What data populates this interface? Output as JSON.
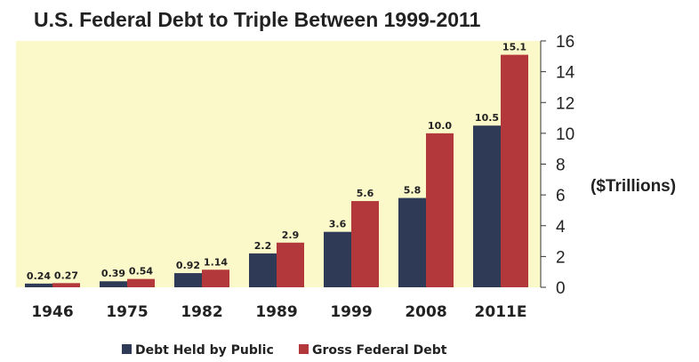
{
  "chart_data": {
    "type": "bar",
    "title": "U.S. Federal Debt to Triple Between 1999-2011",
    "ylabel": "($Trillions)",
    "xlabel": "",
    "categories": [
      "1946",
      "1975",
      "1982",
      "1989",
      "1999",
      "2008",
      "2011E"
    ],
    "series": [
      {
        "name": "Debt Held by Public",
        "color": "#2f3a56",
        "values": [
          0.24,
          0.39,
          0.92,
          2.2,
          3.6,
          5.8,
          10.5
        ],
        "labels": [
          "0.24",
          "0.39",
          "0.92",
          "2.2",
          "3.6",
          "5.8",
          "10.5"
        ]
      },
      {
        "name": "Gross Federal Debt",
        "color": "#b3383b",
        "values": [
          0.27,
          0.54,
          1.14,
          2.9,
          5.6,
          10.0,
          15.1
        ],
        "labels": [
          "0.27",
          "0.54",
          "1.14",
          "2.9",
          "5.6",
          "10.0",
          "15.1"
        ]
      }
    ],
    "ylim": [
      0,
      16
    ],
    "yticks": [
      "0",
      "2",
      "4",
      "6",
      "8",
      "10",
      "12",
      "14",
      "16"
    ],
    "y_axis_side": "right",
    "grid": false,
    "legend": "bottom-center",
    "plot_background": "#fbf8c9"
  }
}
